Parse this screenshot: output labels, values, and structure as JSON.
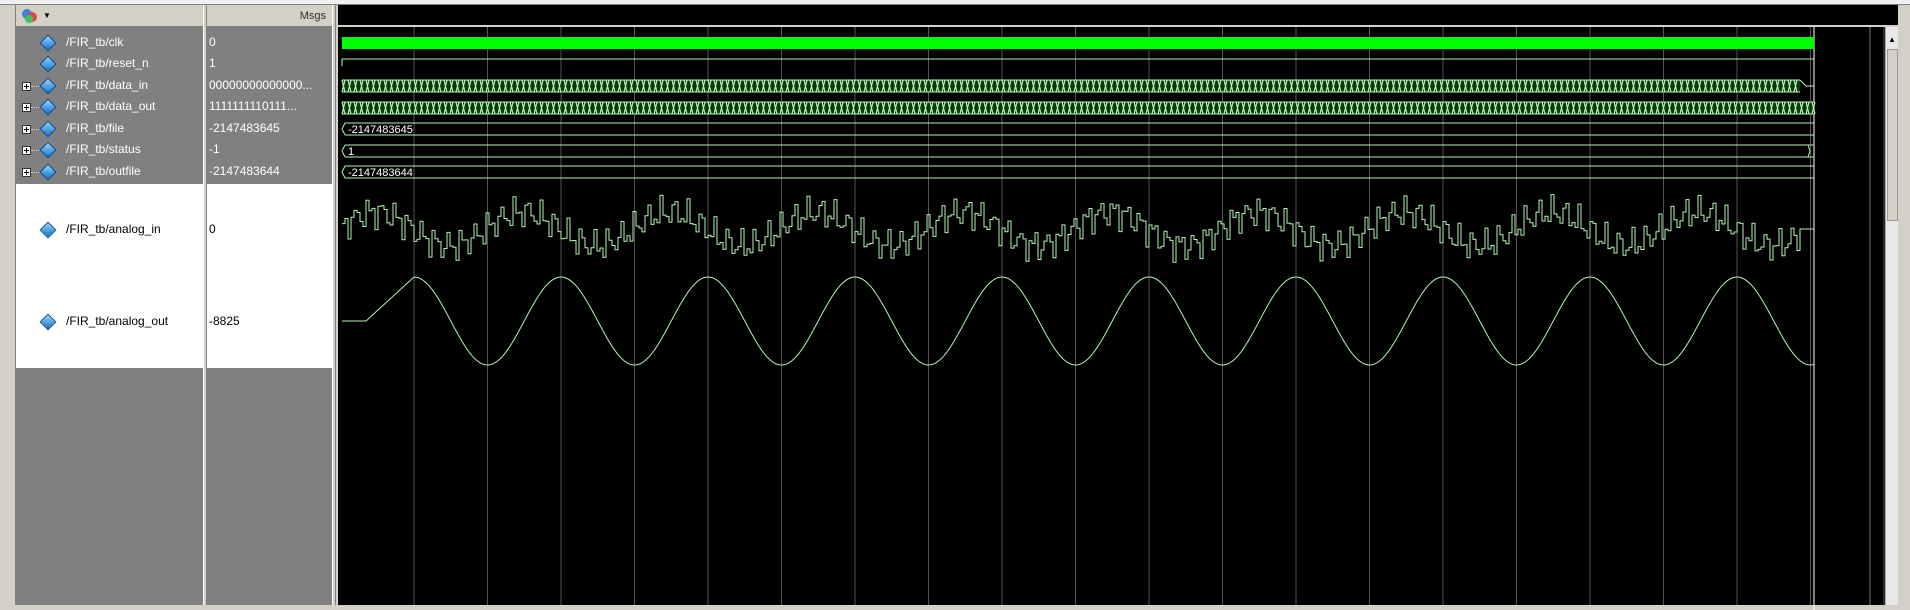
{
  "header": {
    "values_label": "Msgs"
  },
  "toolbar": {
    "icon": "layout-icon"
  },
  "signals": [
    {
      "name": "/FIR_tb/clk",
      "value": "0",
      "expandable": false
    },
    {
      "name": "/FIR_tb/reset_n",
      "value": "1",
      "expandable": false
    },
    {
      "name": "/FIR_tb/data_in",
      "value": "00000000000000...",
      "expandable": true
    },
    {
      "name": "/FIR_tb/data_out",
      "value": "1111111110111...",
      "expandable": true
    },
    {
      "name": "/FIR_tb/file",
      "value": "-2147483645",
      "expandable": true
    },
    {
      "name": "/FIR_tb/status",
      "value": "-1",
      "expandable": true
    },
    {
      "name": "/FIR_tb/outfile",
      "value": "-2147483644",
      "expandable": true
    },
    {
      "name": "/FIR_tb/analog_in",
      "value": "0",
      "expandable": false
    },
    {
      "name": "/FIR_tb/analog_out",
      "value": "-8825",
      "expandable": false
    }
  ],
  "waves": {
    "file_label": "-2147483645",
    "status_label": "1",
    "outfile_label": "-2147483644"
  },
  "colors": {
    "wave": "#00ff00",
    "wave_light": "#b6f2b6",
    "background": "#000000",
    "grid": "#c8c8c8"
  }
}
